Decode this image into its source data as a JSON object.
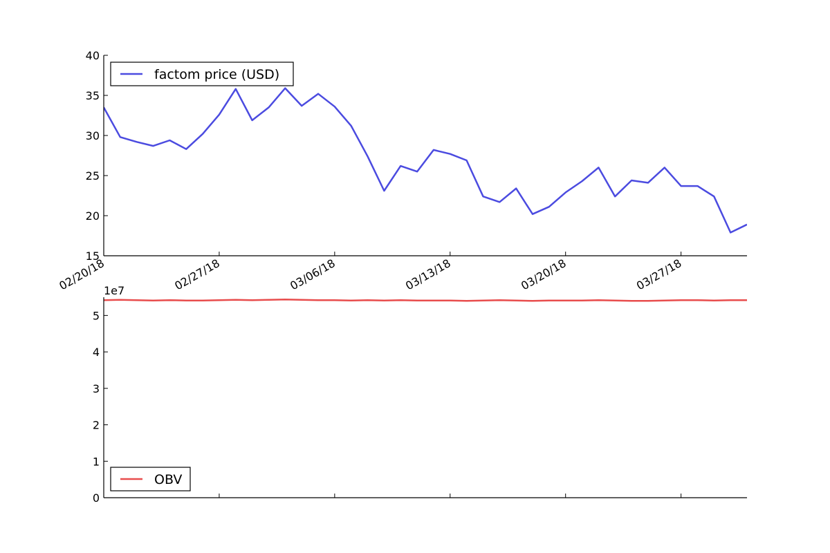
{
  "chart_data": [
    {
      "type": "line",
      "ylim": [
        15,
        40
      ],
      "yticks": [
        15,
        20,
        25,
        30,
        35,
        40
      ],
      "x_dates": [
        "02/20/18",
        "02/21/18",
        "02/22/18",
        "02/23/18",
        "02/24/18",
        "02/25/18",
        "02/26/18",
        "02/27/18",
        "02/28/18",
        "03/01/18",
        "03/02/18",
        "03/03/18",
        "03/04/18",
        "03/05/18",
        "03/06/18",
        "03/07/18",
        "03/08/18",
        "03/09/18",
        "03/10/18",
        "03/11/18",
        "03/12/18",
        "03/13/18",
        "03/14/18",
        "03/15/18",
        "03/16/18",
        "03/17/18",
        "03/18/18",
        "03/19/18",
        "03/20/18",
        "03/21/18",
        "03/22/18",
        "03/23/18",
        "03/24/18",
        "03/25/18",
        "03/26/18",
        "03/27/18",
        "03/28/18",
        "03/29/18",
        "03/30/18",
        "03/31/18"
      ],
      "xlim": [
        "02/20/18",
        "03/31/18"
      ],
      "xtick_labels": [
        "02/20/18",
        "02/27/18",
        "03/06/18",
        "03/13/18",
        "03/20/18",
        "03/27/18"
      ],
      "series": [
        {
          "name": "factom price (USD)",
          "color": "#4b4be0",
          "values": [
            33.5,
            29.8,
            29.2,
            28.7,
            29.4,
            28.3,
            30.2,
            32.6,
            35.8,
            31.9,
            33.5,
            35.9,
            33.7,
            35.2,
            33.6,
            31.2,
            27.4,
            23.1,
            26.2,
            25.5,
            28.2,
            27.7,
            26.9,
            22.4,
            21.7,
            23.4,
            20.2,
            21.1,
            22.9,
            24.3,
            26.0,
            22.4,
            24.4,
            24.1,
            26.0,
            23.7,
            23.7,
            22.4,
            17.9,
            18.9
          ]
        }
      ],
      "legend": "upper left"
    },
    {
      "type": "line",
      "ylim": [
        0,
        5.5
      ],
      "yticks": [
        0,
        1,
        2,
        3,
        4,
        5
      ],
      "y_offset_label": "1e7",
      "x_dates": [
        "02/20/18",
        "02/21/18",
        "02/22/18",
        "02/23/18",
        "02/24/18",
        "02/25/18",
        "02/26/18",
        "02/27/18",
        "02/28/18",
        "03/01/18",
        "03/02/18",
        "03/03/18",
        "03/04/18",
        "03/05/18",
        "03/06/18",
        "03/07/18",
        "03/08/18",
        "03/09/18",
        "03/10/18",
        "03/11/18",
        "03/12/18",
        "03/13/18",
        "03/14/18",
        "03/15/18",
        "03/16/18",
        "03/17/18",
        "03/18/18",
        "03/19/18",
        "03/20/18",
        "03/21/18",
        "03/22/18",
        "03/23/18",
        "03/24/18",
        "03/25/18",
        "03/26/18",
        "03/27/18",
        "03/28/18",
        "03/29/18",
        "03/30/18",
        "03/31/18"
      ],
      "xlim": [
        "02/20/18",
        "03/31/18"
      ],
      "series": [
        {
          "name": "OBV",
          "color": "#e84c4c",
          "values": [
            5.42,
            5.43,
            5.42,
            5.41,
            5.42,
            5.41,
            5.41,
            5.42,
            5.43,
            5.42,
            5.43,
            5.44,
            5.43,
            5.42,
            5.42,
            5.41,
            5.42,
            5.41,
            5.42,
            5.41,
            5.41,
            5.41,
            5.4,
            5.41,
            5.42,
            5.41,
            5.4,
            5.41,
            5.41,
            5.41,
            5.42,
            5.41,
            5.4,
            5.4,
            5.41,
            5.42,
            5.42,
            5.41,
            5.42,
            5.42
          ]
        }
      ],
      "legend": "lower left"
    }
  ]
}
